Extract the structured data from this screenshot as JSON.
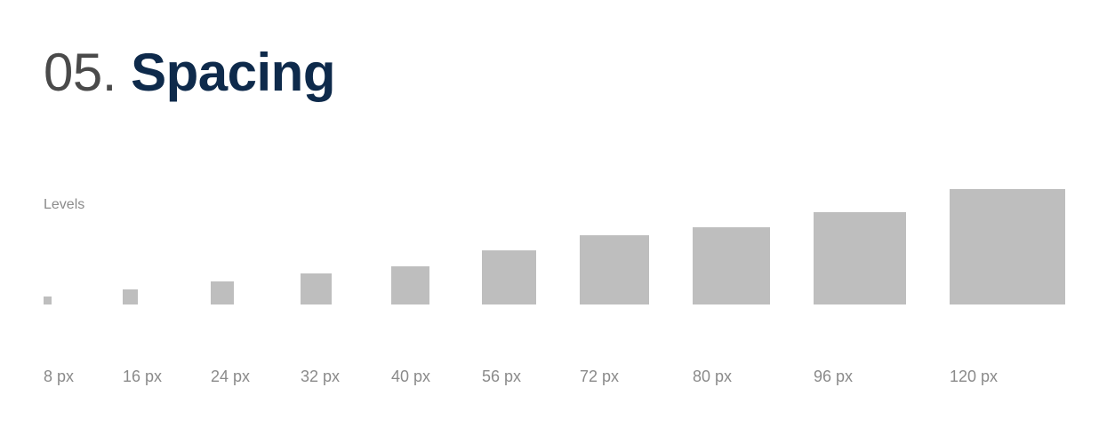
{
  "title": {
    "number": "05.",
    "word": "Spacing"
  },
  "levels_label": "Levels",
  "colors": {
    "swatch": "#bebebe",
    "title_word": "#0e2a4b",
    "title_number": "#4a4a4a",
    "label": "#8a8a8a"
  },
  "levels": [
    {
      "label": "8 px",
      "value": 8
    },
    {
      "label": "16 px",
      "value": 16
    },
    {
      "label": "24 px",
      "value": 24
    },
    {
      "label": "32 px",
      "value": 32
    },
    {
      "label": "40 px",
      "value": 40
    },
    {
      "label": "56 px",
      "value": 56
    },
    {
      "label": "72 px",
      "value": 72
    },
    {
      "label": "80 px",
      "value": 80
    },
    {
      "label": "96 px",
      "value": 96
    },
    {
      "label": "120 px",
      "value": 120
    }
  ]
}
